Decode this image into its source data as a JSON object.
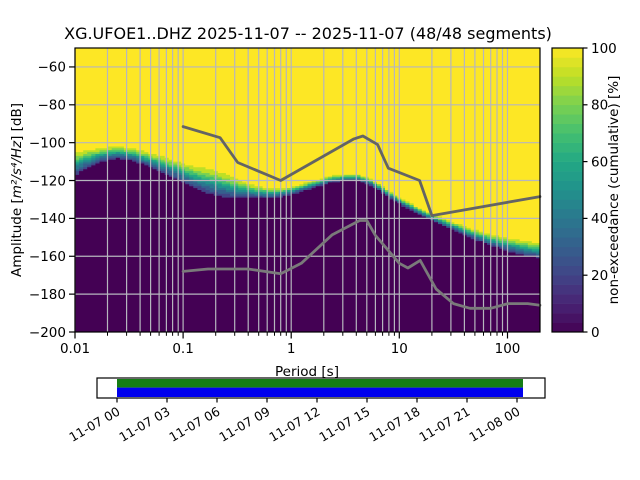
{
  "title": "XG.UFOE1..DHZ   2025-11-07 -- 2025-11-07  (48/48 segments)",
  "colors": {
    "background": "#ffffff",
    "grid": "#b6b6be",
    "spine": "#000000",
    "pct100_yellow": "#fde725",
    "pct0_purple": "#440154",
    "nhnm_line": "#646464",
    "nlnm_line": "#7a7a7a",
    "timeline_green": "#147d14",
    "timeline_blue": "#0000ee",
    "viridis": [
      "#440154",
      "#482474",
      "#414487",
      "#355f8d",
      "#2a788e",
      "#21918c",
      "#22a884",
      "#44bf70",
      "#7ad151",
      "#bddf26",
      "#fde725"
    ]
  },
  "chart_data": {
    "type": "heatmap",
    "station_id": "XG.UFOE1..DHZ",
    "date_range": "2025-11-07 -- 2025-11-07",
    "segments": "48/48 segments",
    "xlabel": "Period [s]",
    "ylabel_prefix": "Amplitude [",
    "ylabel_math": "m²/s⁴/Hz",
    "ylabel_suffix": "] [dB]",
    "xscale": "log",
    "xlim": [
      0.01,
      200
    ],
    "ylim": [
      -200,
      -50
    ],
    "xticks": {
      "values": [
        0.01,
        0.1,
        1,
        10,
        100
      ],
      "labels": [
        "0.01",
        "0.1",
        "1",
        "10",
        "100"
      ]
    },
    "yticks": [
      -200,
      -180,
      -160,
      -140,
      -120,
      -100,
      -80,
      -60
    ],
    "colorbar": {
      "label": "non-exceedance (cumulative) [%]",
      "ticks": [
        0,
        20,
        40,
        60,
        80,
        100
      ],
      "cmap": "viridis",
      "segments": 30
    },
    "cumulative_distribution": {
      "description": "median dB of 0-to-100% transition vs period, with half-spread in dB",
      "points": [
        [
          0.01,
          -112.5,
          4.5
        ],
        [
          0.013,
          -109.5,
          3.5
        ],
        [
          0.018,
          -107.0,
          2.8
        ],
        [
          0.025,
          -105.8,
          2.4
        ],
        [
          0.035,
          -107.0,
          2.4
        ],
        [
          0.05,
          -110.0,
          2.8
        ],
        [
          0.07,
          -113.0,
          3.2
        ],
        [
          0.1,
          -117.0,
          3.8
        ],
        [
          0.14,
          -120.0,
          4.5
        ],
        [
          0.2,
          -122.5,
          5.0
        ],
        [
          0.3,
          -125.0,
          4.0
        ],
        [
          0.45,
          -126.5,
          2.5
        ],
        [
          0.65,
          -127.3,
          1.8
        ],
        [
          0.9,
          -126.5,
          1.5
        ],
        [
          1.2,
          -124.5,
          1.5
        ],
        [
          1.7,
          -122.0,
          1.4
        ],
        [
          2.4,
          -119.5,
          1.3
        ],
        [
          3.2,
          -118.8,
          1.3
        ],
        [
          4.2,
          -118.9,
          1.3
        ],
        [
          5.2,
          -120.5,
          1.3
        ],
        [
          6.5,
          -124.0,
          1.3
        ],
        [
          8.0,
          -127.5,
          1.3
        ],
        [
          10.0,
          -131.0,
          1.3
        ],
        [
          13.0,
          -134.5,
          1.3
        ],
        [
          17.0,
          -137.8,
          1.3
        ],
        [
          22.0,
          -140.8,
          1.4
        ],
        [
          30.0,
          -144.0,
          1.5
        ],
        [
          40.0,
          -147.0,
          1.8
        ],
        [
          55.0,
          -150.0,
          2.0
        ],
        [
          75.0,
          -152.5,
          2.2
        ],
        [
          100.0,
          -154.5,
          2.5
        ],
        [
          140.0,
          -156.2,
          2.8
        ],
        [
          200.0,
          -157.8,
          3.0
        ]
      ]
    },
    "noise_models": {
      "nhnm": [
        [
          0.1,
          -91.5
        ],
        [
          0.22,
          -97.4
        ],
        [
          0.32,
          -110.5
        ],
        [
          0.8,
          -120.0
        ],
        [
          3.8,
          -98.0
        ],
        [
          4.6,
          -96.5
        ],
        [
          6.3,
          -101.0
        ],
        [
          7.9,
          -113.5
        ],
        [
          15.4,
          -120.0
        ],
        [
          20.0,
          -138.5
        ],
        [
          200.0,
          -128.5
        ]
      ],
      "nlnm": [
        [
          0.1,
          -168.0
        ],
        [
          0.17,
          -166.7
        ],
        [
          0.4,
          -166.7
        ],
        [
          0.8,
          -169.2
        ],
        [
          1.24,
          -163.7
        ],
        [
          2.4,
          -148.6
        ],
        [
          4.3,
          -141.1
        ],
        [
          5.0,
          -141.1
        ],
        [
          6.0,
          -149.0
        ],
        [
          10.0,
          -163.7
        ],
        [
          12.0,
          -166.2
        ],
        [
          15.6,
          -162.2
        ],
        [
          21.9,
          -177.3
        ],
        [
          31.6,
          -185.0
        ],
        [
          45.0,
          -187.5
        ],
        [
          70.0,
          -187.5
        ],
        [
          101.0,
          -185.0
        ],
        [
          154.0,
          -185.0
        ],
        [
          200.0,
          -185.9
        ]
      ]
    },
    "timeline": {
      "tick_labels": [
        "11-07 00",
        "11-07 03",
        "11-07 06",
        "11-07 09",
        "11-07 12",
        "11-07 15",
        "11-07 18",
        "11-07 21",
        "11-08 00"
      ]
    }
  }
}
